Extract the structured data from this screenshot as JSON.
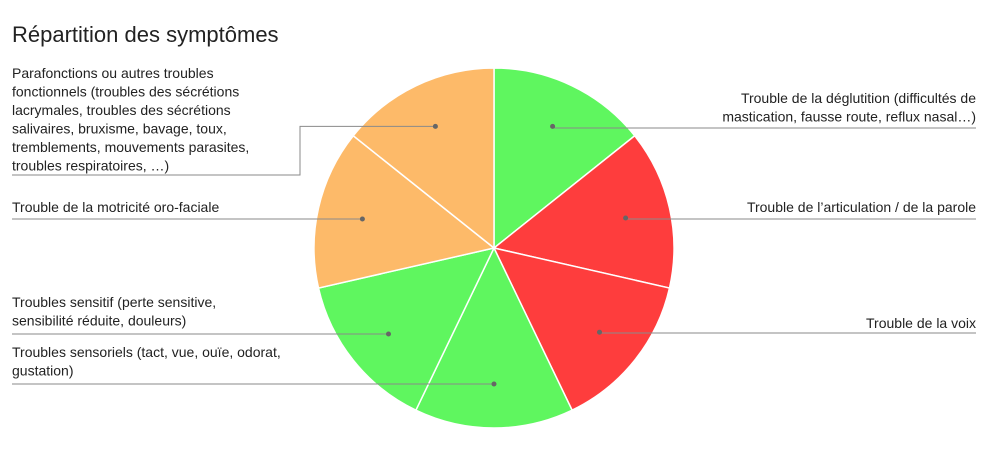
{
  "chart_data": {
    "type": "pie",
    "title": "Répartition des symptômes",
    "slices": [
      {
        "label": [
          "Trouble de la déglutition (difficultés de",
          "mastication, fausse route, reflux nasal…)"
        ],
        "value": 1,
        "color": "#5ff65f"
      },
      {
        "label": [
          "Trouble de l’articulation / de la parole"
        ],
        "value": 1,
        "color": "#fe3d3d"
      },
      {
        "label": [
          "Trouble de la voix"
        ],
        "value": 1,
        "color": "#fe3d3d"
      },
      {
        "label": [
          "Troubles sensoriels (tact, vue, ouïe, odorat,",
          "gustation)"
        ],
        "value": 1,
        "color": "#5ff65f"
      },
      {
        "label": [
          "Troubles sensitif (perte sensitive,",
          "sensibilité réduite, douleurs)"
        ],
        "value": 1,
        "color": "#5ff65f"
      },
      {
        "label": [
          "Trouble de la motricité oro-faciale"
        ],
        "value": 1,
        "color": "#fdba69"
      },
      {
        "label": [
          "Parafonctions ou autres troubles",
          "fonctionnels (troubles des sécrétions",
          "lacrymales, troubles des sécrétions",
          "salivaires, bruxisme, bavage, toux,",
          "tremblements, mouvements parasites,",
          "troubles respiratoires, …)"
        ],
        "value": 1,
        "color": "#fdba69"
      }
    ],
    "legend": "callouts"
  }
}
